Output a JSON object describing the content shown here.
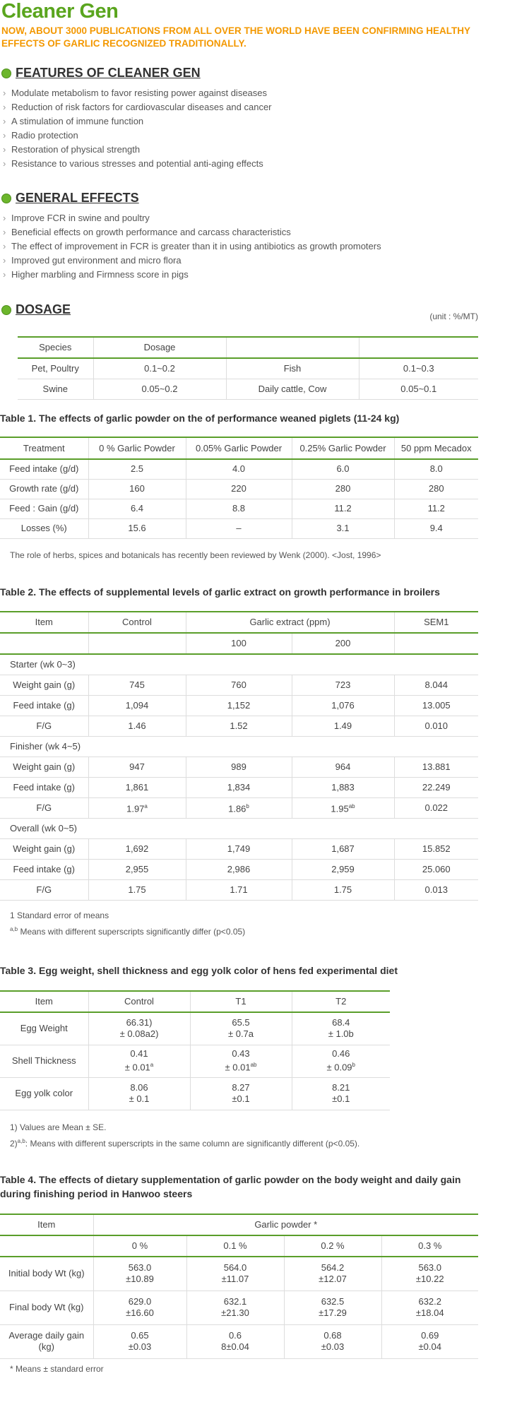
{
  "title": "Cleaner Gen",
  "subtitle": "NOW, ABOUT 3000 PUBLICATIONS FROM ALL OVER THE WORLD HAVE BEEN CONFIRMING HEALTHY EFFECTS OF GARLIC RECOGNIZED TRADITIONALLY.",
  "sections": [
    {
      "heading": "FEATURES OF CLEANER GEN",
      "items": [
        "Modulate metabolism to favor resisting power against diseases",
        "Reduction of risk factors for cardiovascular diseases and cancer",
        "A stimulation of immune function",
        "Radio protection",
        "Restoration of physical strength",
        "Resistance to various stresses and potential anti-aging  effects"
      ]
    },
    {
      "heading": "GENERAL EFFECTS",
      "items": [
        "Improve FCR in swine and poultry",
        "Beneficial effects on growth performance and carcass characteristics",
        "The effect of improvement in FCR is greater than it in using antibiotics as growth promoters",
        "Improved gut environment and micro flora",
        "Higher marbling and Firmness score in pigs"
      ]
    }
  ],
  "dosage": {
    "heading": "DOSAGE",
    "unit": "(unit : %/MT)",
    "header": [
      "Species",
      "Dosage"
    ],
    "rows": [
      [
        "Pet, Poultry",
        "0.1~0.2",
        "Fish",
        "0.1~0.3"
      ],
      [
        "Swine",
        "0.05~0.2",
        "Daily cattle, Cow",
        "0.05~0.1"
      ]
    ]
  },
  "tables": [
    {
      "caption": "Table 1. The effects of garlic powder on the of performance weaned piglets (11-24 kg)",
      "header": [
        "Treatment",
        "0 % Garlic Powder",
        "0.05% Garlic Powder",
        "0.25% Garlic Powder",
        "50 ppm Mecadox"
      ],
      "rows": [
        [
          "Feed intake (g/d)",
          "2.5",
          "4.0",
          "6.0",
          "8.0"
        ],
        [
          "Growth rate (g/d)",
          "160",
          "220",
          "280",
          "280"
        ],
        [
          "Feed : Gain (g/d)",
          "6.4",
          "8.8",
          "11.2",
          "11.2"
        ],
        [
          "Losses (%)",
          "15.6",
          "–",
          "3.1",
          "9.4"
        ]
      ],
      "notes": [
        "The role of herbs, spices and botanicals has recently been reviewed by Wenk (2000). <Jost, 1996>"
      ]
    },
    {
      "caption": "Table 2.  The effects of supplemental levels of garlic extract on growth performance in broilers",
      "header": [
        "Item",
        "Control",
        "Garlic extract (ppm)",
        "SEM1"
      ],
      "subheader": [
        "100",
        "200"
      ],
      "rows": [
        {
          "group": "Starter (wk 0~3)"
        },
        [
          "Weight gain (g)",
          "745",
          "760",
          "723",
          "8.044"
        ],
        [
          "Feed intake  (g)",
          "1,094",
          "1,152",
          "1,076",
          "13.005"
        ],
        [
          "F/G",
          "1.46",
          "1.52",
          "1.49",
          "0.010"
        ],
        {
          "group": "Finisher (wk 4~5)"
        },
        [
          "Weight gain (g)",
          "947",
          "989",
          "964",
          "13.881"
        ],
        [
          "Feed intake  (g)",
          "1,861",
          "1,834",
          "1,883",
          "22.249"
        ],
        [
          "F/G",
          {
            "text": "1.97",
            "sup": "a"
          },
          {
            "text": "1.86",
            "sup": "b"
          },
          {
            "text": "1.95",
            "sup": "ab"
          },
          "0.022"
        ],
        {
          "group": "Overall (wk 0~5)"
        },
        [
          "Weight gain (g)",
          "1,692",
          "1,749",
          "1,687",
          "15.852"
        ],
        [
          "Feed intake  (g)",
          "2,955",
          "2,986",
          "2,959",
          "25.060"
        ],
        [
          "F/G",
          "1.75",
          "1.71",
          "1.75",
          "0.013"
        ]
      ],
      "notes": [
        "1 Standard error of means",
        {
          "sup": "a,b",
          "text": " Means with different superscripts significantly differ (p<0.05)"
        }
      ]
    },
    {
      "caption": "Table 3. Egg weight, shell thickness and egg yolk color of hens fed experimental diet",
      "header": [
        "Item",
        "Control",
        "T1",
        "T2"
      ],
      "rows": [
        [
          "Egg Weight",
          [
            "66.31)",
            "± 0.08a2)"
          ],
          [
            "65.5",
            "± 0.7a"
          ],
          [
            "68.4",
            "± 1.0b"
          ]
        ],
        [
          "Shell Thickness",
          [
            "0.41",
            {
              "text": "± 0.01",
              "sup": "a"
            }
          ],
          [
            "0.43",
            {
              "text": "± 0.01",
              "sup": "ab"
            }
          ],
          [
            "0.46",
            {
              "text": "± 0.09",
              "sup": "b"
            }
          ]
        ],
        [
          "Egg yolk color",
          [
            "8.06",
            "± 0.1"
          ],
          [
            "8.27",
            "±0.1"
          ],
          [
            "8.21",
            "±0.1"
          ]
        ]
      ],
      "notes": [
        "1) Values are Mean ± SE.",
        {
          "prefix": "2)",
          "sup": "a,b",
          "text": ": Means with different superscripts in the same column are significantly different (p<0.05)."
        }
      ]
    },
    {
      "caption": "Table 4. The effects of dietary supplementation of garlic powder on the body weight and daily gain during finishing period in Hanwoo steers",
      "header": [
        "Item",
        "Garlic powder *"
      ],
      "subheader": [
        "0 %",
        "0.1 %",
        "0.2 %",
        "0.3 %"
      ],
      "rows": [
        [
          "Initial body Wt (kg)",
          [
            "563.0",
            "±10.89"
          ],
          [
            "564.0",
            "±11.07"
          ],
          [
            "564.2",
            "±12.07"
          ],
          [
            "563.0",
            "±10.22"
          ]
        ],
        [
          "Final body Wt (kg)",
          [
            "629.0",
            "±16.60"
          ],
          [
            "632.1",
            "±21.30"
          ],
          [
            "632.5",
            "±17.29"
          ],
          [
            "632.2",
            "±18.04"
          ]
        ],
        [
          "Average daily gain (kg)",
          [
            "0.65",
            "±0.03"
          ],
          [
            "0.6",
            "8±0.04"
          ],
          [
            "0.68",
            "±0.03"
          ],
          [
            "0.69",
            "±0.04"
          ]
        ]
      ],
      "notes": [
        "* Means ± standard error"
      ]
    }
  ]
}
